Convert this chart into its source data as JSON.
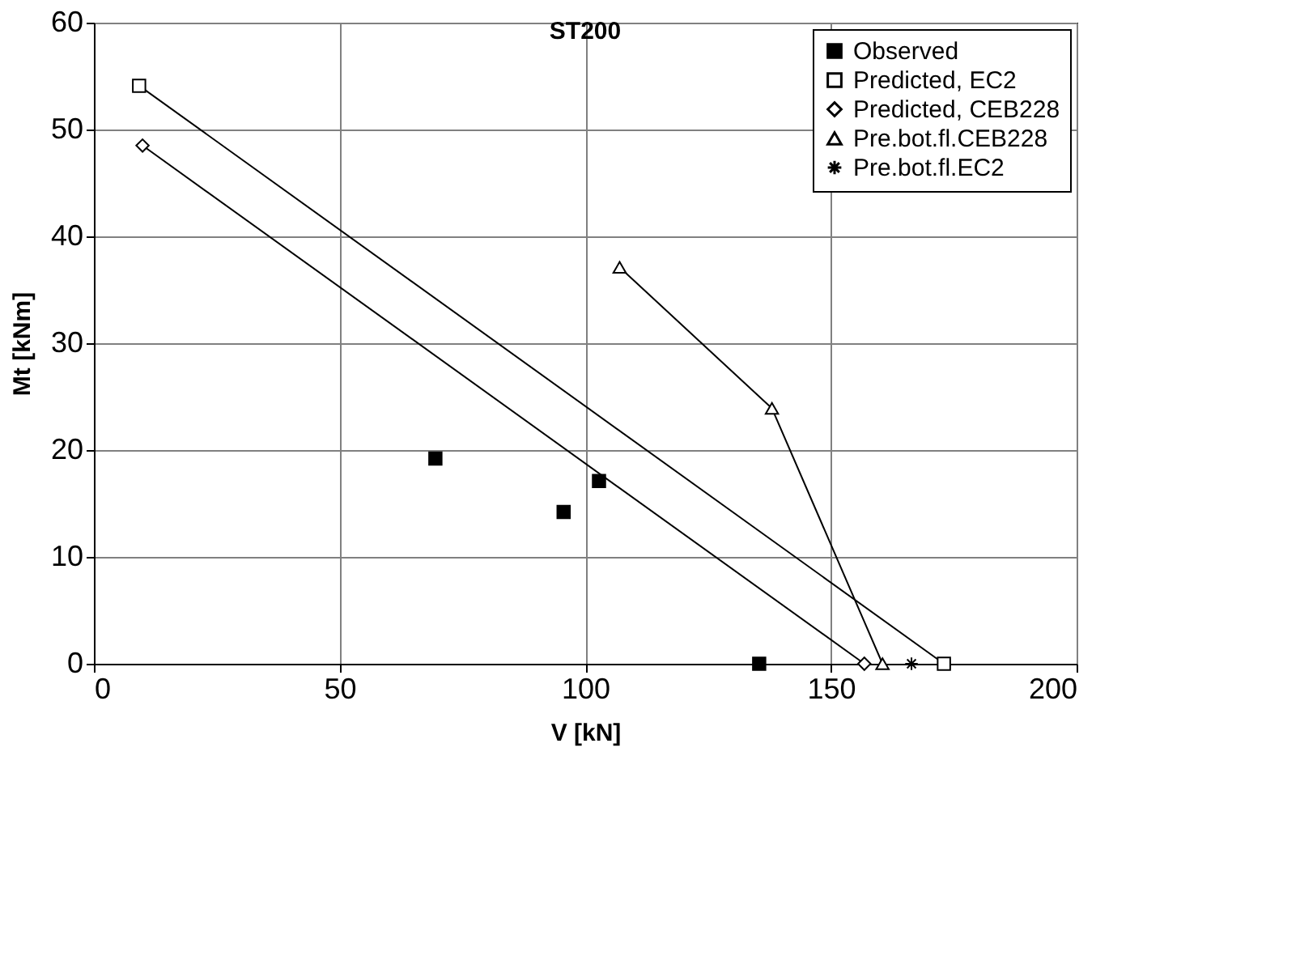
{
  "chart_data": {
    "type": "line",
    "title": "ST200",
    "xlabel": "V [kN]",
    "ylabel": "Mt [kNm]",
    "xlim": [
      0,
      200
    ],
    "xticks": [
      0,
      50,
      100,
      150,
      200
    ],
    "ylim": [
      0,
      60
    ],
    "yticks": [
      0,
      10,
      20,
      30,
      40,
      50,
      60
    ],
    "grid": true,
    "legend": "top right",
    "series": [
      {
        "name": "Observed",
        "type": "scatter",
        "marker": "square",
        "color": "#000000",
        "x": [
          69.5,
          95.6,
          102.8,
          135.4
        ],
        "values": [
          19.2,
          14.2,
          17.1,
          0
        ]
      },
      {
        "name": "Predicted, EC2",
        "marker": "square",
        "color": "#000000",
        "x": [
          9.2,
          173
        ],
        "values": [
          54.1,
          0
        ]
      },
      {
        "name": "Predicted, CEB228",
        "marker": "diamond",
        "color": "#000000",
        "x": [
          9.9,
          156.8
        ],
        "values": [
          48.5,
          0
        ]
      },
      {
        "name": "Pre.bot.fl.CEB228",
        "marker": "triangle",
        "color": "#000000",
        "x": [
          107,
          138,
          160.5
        ],
        "values": [
          37.1,
          23.9,
          0
        ]
      },
      {
        "name": "Pre.bot.fl.EC2",
        "marker": "cross",
        "color": "#000000",
        "x": [
          166.4
        ],
        "values": [
          0
        ]
      }
    ]
  }
}
